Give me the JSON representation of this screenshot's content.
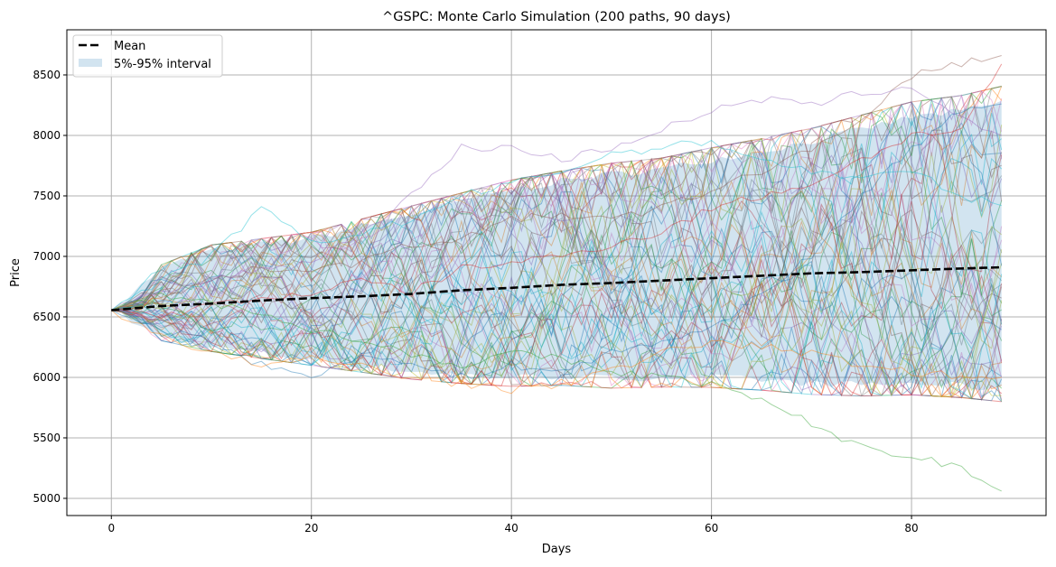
{
  "chart_data": {
    "type": "line",
    "title": "^GSPC: Monte Carlo Simulation (200 paths, 90 days)",
    "xlabel": "Days",
    "ylabel": "Price",
    "xlim": [
      -4.45,
      93.45
    ],
    "ylim": [
      4858,
      8873
    ],
    "xticks": [
      0,
      20,
      40,
      60,
      80
    ],
    "yticks": [
      5000,
      5500,
      6000,
      6500,
      7000,
      7500,
      8000,
      8500
    ],
    "grid": true,
    "legend": {
      "placement": "upper-left",
      "entries": [
        "Mean",
        "5%-95% interval"
      ]
    },
    "colors": {
      "mean": "#000000",
      "band": "#1f77b4"
    },
    "sample_days": [
      0,
      5,
      10,
      15,
      20,
      25,
      30,
      35,
      40,
      45,
      50,
      55,
      60,
      65,
      70,
      75,
      80,
      85,
      89
    ],
    "series": [
      {
        "name": "Mean",
        "values": [
          6555,
          6590,
          6610,
          6635,
          6655,
          6670,
          6690,
          6720,
          6740,
          6765,
          6780,
          6800,
          6820,
          6840,
          6860,
          6870,
          6885,
          6900,
          6910
        ]
      },
      {
        "name": "5%-95% interval",
        "upper": [
          6555,
          6900,
          7050,
          7100,
          7150,
          7250,
          7350,
          7450,
          7550,
          7620,
          7680,
          7720,
          7800,
          7870,
          7950,
          8050,
          8150,
          8200,
          8270
        ],
        "lower": [
          6555,
          6330,
          6250,
          6200,
          6150,
          6100,
          6050,
          6020,
          6000,
          6010,
          5990,
          6000,
          6000,
          5980,
          5950,
          5940,
          5950,
          5930,
          5900
        ]
      }
    ],
    "highlighted_paths": [
      {
        "color": "#2ca02c",
        "values": [
          6555,
          6700,
          6600,
          6550,
          6400,
          6300,
          6200,
          6100,
          6200,
          6150,
          6050,
          6000,
          5950,
          5800,
          5620,
          5420,
          5350,
          5250,
          5060
        ]
      },
      {
        "color": "#8c564b",
        "values": [
          6555,
          6650,
          6800,
          6900,
          6900,
          6950,
          7100,
          7150,
          7300,
          7350,
          7300,
          7400,
          7550,
          7700,
          7900,
          8100,
          8500,
          8600,
          8660
        ]
      },
      {
        "color": "#d62728",
        "values": [
          6555,
          6500,
          6600,
          6650,
          6700,
          6800,
          6700,
          6900,
          6950,
          7000,
          7100,
          7200,
          7400,
          7500,
          7600,
          7800,
          8000,
          8050,
          8590
        ]
      },
      {
        "color": "#9467bd",
        "values": [
          6555,
          6700,
          6800,
          6900,
          6950,
          7200,
          7500,
          7900,
          7900,
          7800,
          7900,
          8050,
          8200,
          8300,
          8250,
          8350,
          8400,
          8150,
          8000
        ]
      },
      {
        "color": "#17becf",
        "values": [
          6555,
          6800,
          7000,
          7400,
          7100,
          7200,
          7300,
          7500,
          7600,
          7700,
          7850,
          7900,
          7950,
          7800,
          7700,
          7650,
          7700,
          7500,
          7420
        ]
      },
      {
        "color": "#1f77b4",
        "values": [
          6555,
          6400,
          6300,
          6100,
          6000,
          6200,
          6100,
          6000,
          6100,
          6050,
          6200,
          6300,
          6400,
          6700,
          7000,
          7500,
          7900,
          8200,
          8260
        ]
      },
      {
        "color": "#ff7f0e",
        "values": [
          6555,
          6350,
          6200,
          6100,
          6150,
          6100,
          6000,
          5950,
          5900,
          5950,
          6050,
          6200,
          6300,
          6250,
          6200,
          6100,
          6050,
          6000,
          6000
        ]
      }
    ]
  }
}
